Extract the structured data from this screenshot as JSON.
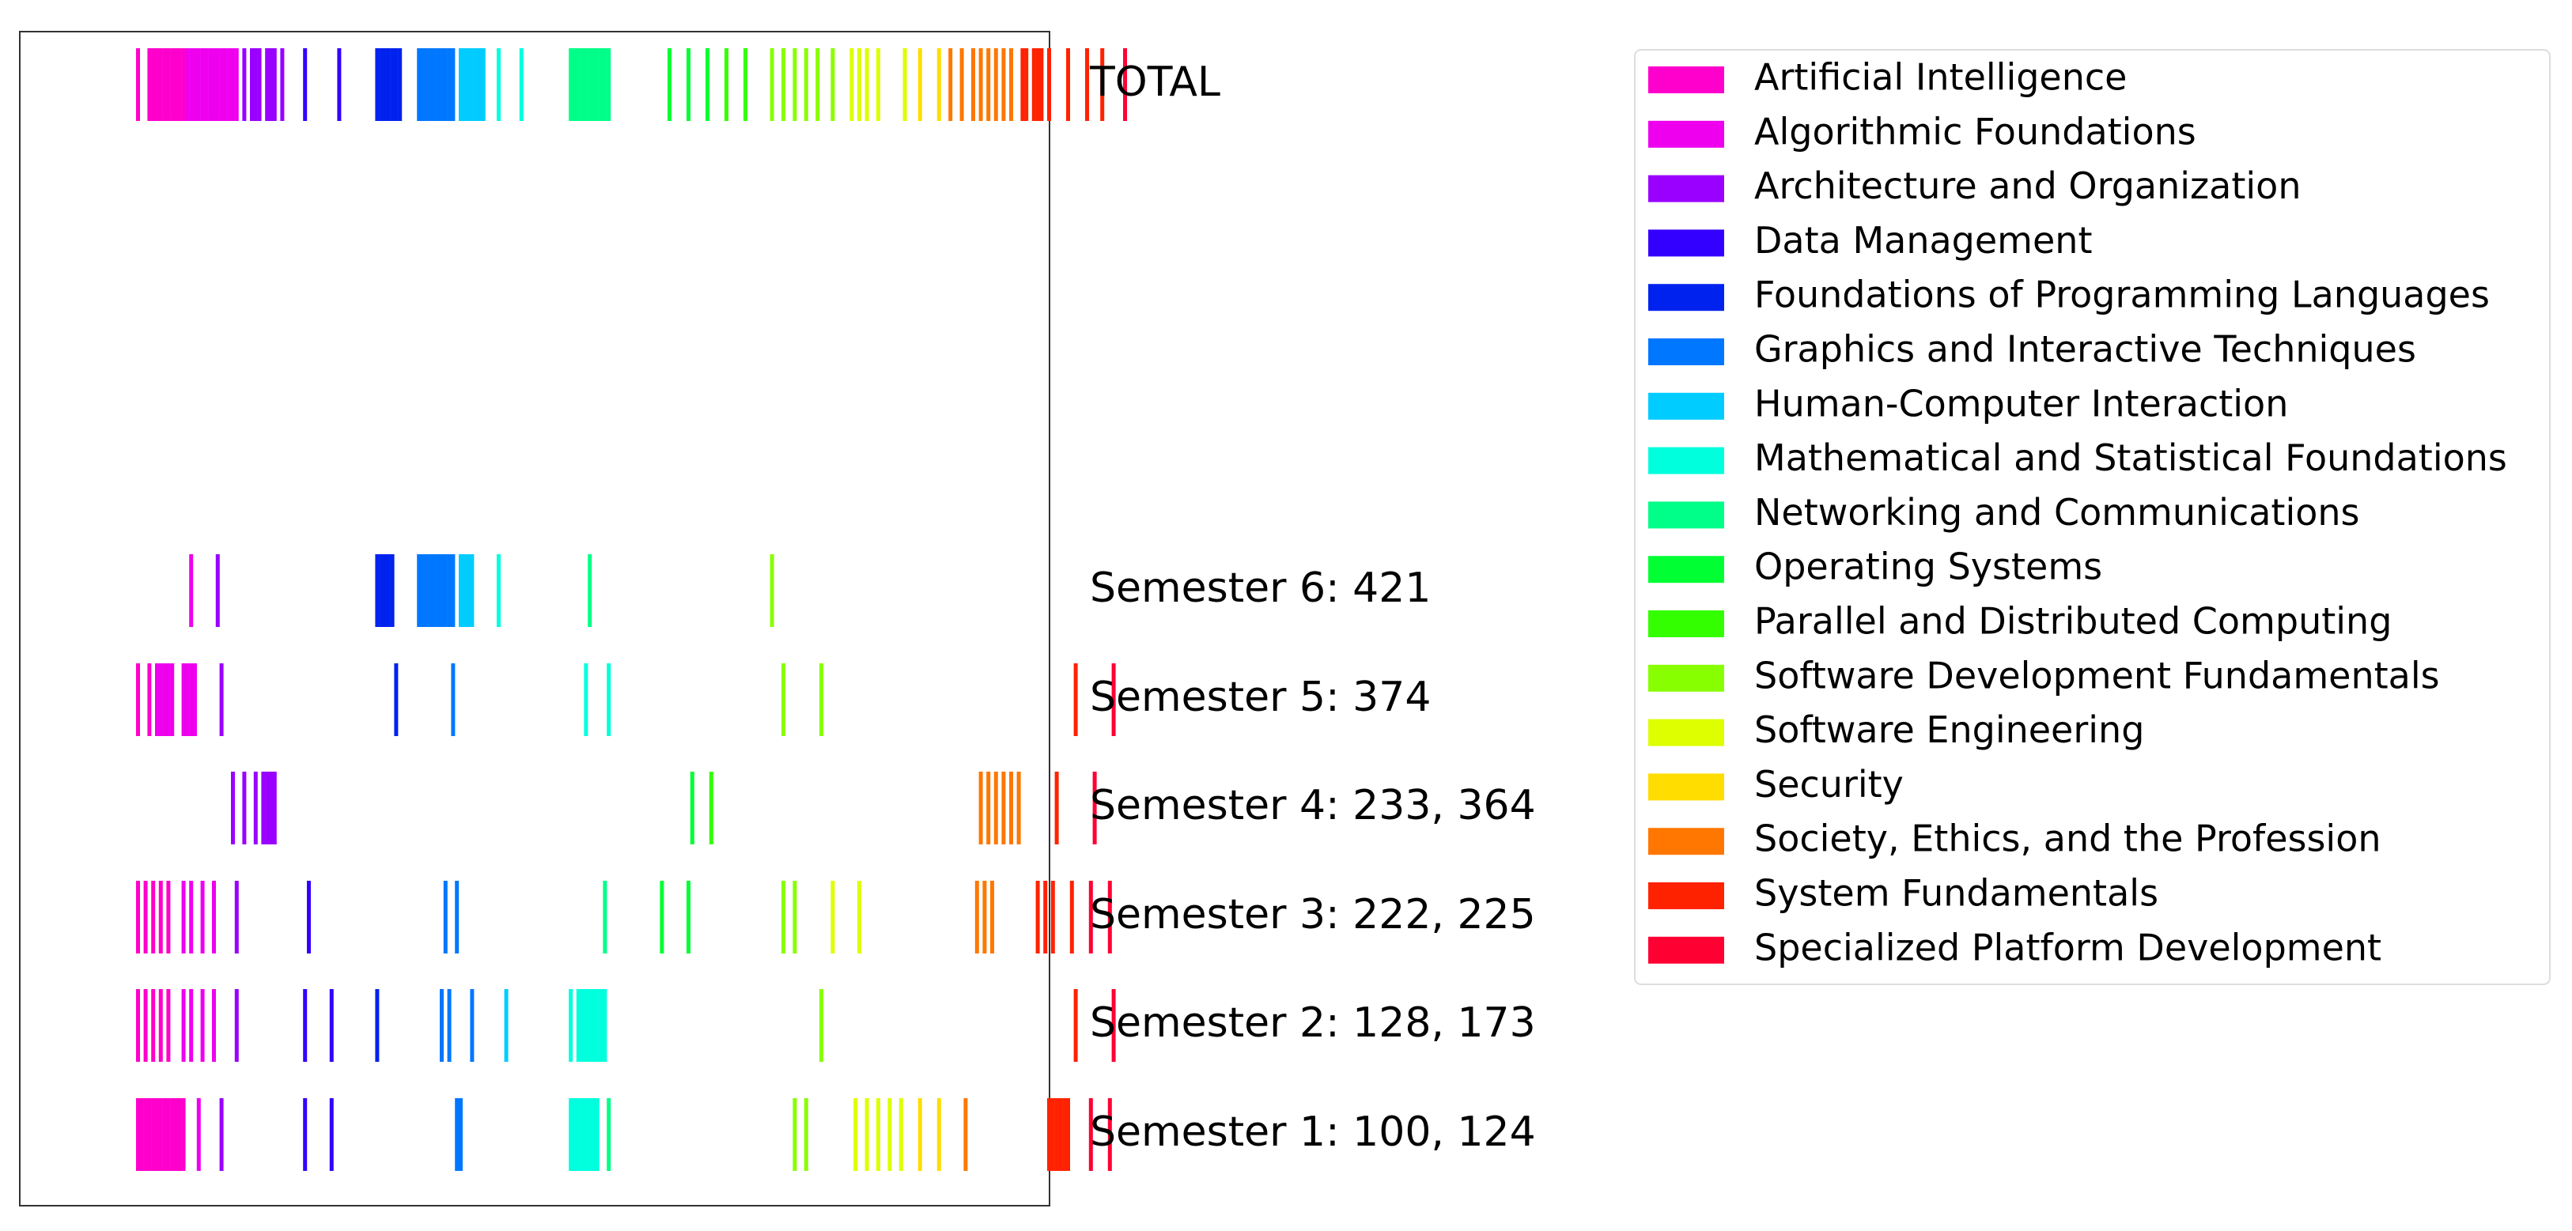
{
  "chart_data": {
    "type": "barcode",
    "row_labels": [
      "TOTAL",
      "Semester 6: 421",
      "Semester 5: 374",
      "Semester 4: 233, 364",
      "Semester 3: 222, 225",
      "Semester 2: 128, 173",
      "Semester 1: 100, 124"
    ],
    "categories": [
      {
        "name": "Artificial Intelligence",
        "color": "#ff00cc"
      },
      {
        "name": "Algorithmic Foundations",
        "color": "#ee00ee"
      },
      {
        "name": "Architecture and Organization",
        "color": "#9900ff"
      },
      {
        "name": "Data Management",
        "color": "#3300ff"
      },
      {
        "name": "Foundations of Programming Languages",
        "color": "#0022ee"
      },
      {
        "name": "Graphics and Interactive Techniques",
        "color": "#0077ff"
      },
      {
        "name": "Human-Computer Interaction",
        "color": "#00ccff"
      },
      {
        "name": "Mathematical and Statistical Foundations",
        "color": "#00ffdd"
      },
      {
        "name": "Networking and Communications",
        "color": "#00ff88"
      },
      {
        "name": "Operating Systems",
        "color": "#00ff33"
      },
      {
        "name": "Parallel and Distributed Computing",
        "color": "#33ff00"
      },
      {
        "name": "Software Development Fundamentals",
        "color": "#88ff00"
      },
      {
        "name": "Software Engineering",
        "color": "#ddff00"
      },
      {
        "name": "Security",
        "color": "#ffdd00"
      },
      {
        "name": "Society, Ethics, and the Profession",
        "color": "#ff7700"
      },
      {
        "name": "System Fundamentals",
        "color": "#ff2200"
      },
      {
        "name": "Specialized Platform Development",
        "color": "#ff0033"
      }
    ],
    "rows": [
      {
        "label": "TOTAL",
        "ticks": [
          [
            0,
            3,
            4,
            5,
            6,
            7,
            8,
            9,
            10,
            11,
            12
          ],
          [
            13,
            14,
            15,
            16,
            17,
            18,
            19,
            20,
            21,
            22,
            23,
            24,
            25,
            26
          ],
          [
            28,
            30,
            31,
            32,
            34,
            35,
            36,
            38
          ],
          [
            44,
            53
          ],
          [
            63,
            64,
            65,
            66,
            67,
            68,
            69
          ],
          [
            74,
            75,
            76,
            77,
            78,
            79,
            80,
            81,
            82,
            83
          ],
          [
            85,
            86,
            87,
            88,
            89,
            90,
            91
          ],
          [
            95,
            101
          ],
          [
            114,
            115,
            116,
            117,
            118,
            119,
            120,
            121,
            122,
            123,
            124
          ],
          [
            140,
            145,
            150
          ],
          [
            155,
            160
          ],
          [
            167,
            170,
            173,
            176,
            179,
            183
          ],
          [
            188,
            190,
            192,
            195,
            202
          ],
          [
            206,
            211
          ],
          [
            214,
            217,
            220,
            222,
            224,
            226,
            228,
            230
          ],
          [
            233,
            234,
            236,
            237,
            238,
            240,
            245,
            250,
            254
          ],
          [
            260
          ]
        ]
      },
      {
        "label": "Semester 6: 421",
        "ticks": [
          [],
          [
            14
          ],
          [
            21
          ],
          [],
          [
            63,
            64,
            65,
            66,
            67
          ],
          [
            74,
            75,
            76,
            77,
            78,
            79,
            80,
            81,
            82,
            83
          ],
          [
            85,
            86,
            87,
            88
          ],
          [
            95
          ],
          [
            119
          ],
          [],
          [],
          [
            167
          ],
          [],
          [],
          [],
          [],
          []
        ]
      },
      {
        "label": "Semester 5: 374",
        "ticks": [
          [
            0,
            3
          ],
          [
            5,
            6,
            7,
            8,
            9,
            12,
            13,
            14,
            15
          ],
          [
            22
          ],
          [],
          [
            68
          ],
          [
            83
          ],
          [],
          [
            118,
            124
          ],
          [],
          [],
          [],
          [
            170,
            180
          ],
          [],
          [],
          [],
          [
            247
          ],
          [
            257
          ]
        ]
      },
      {
        "label": "Semester 4: 233, 364",
        "ticks": [
          [],
          [],
          [
            25,
            28,
            31,
            33,
            34,
            35,
            36
          ],
          [],
          [],
          [],
          [],
          [],
          [],
          [
            146
          ],
          [
            151
          ],
          [],
          [],
          [],
          [
            222,
            224,
            226,
            228,
            230,
            232
          ],
          [
            242
          ],
          [
            252
          ]
        ]
      },
      {
        "label": "Semester 3: 222, 225",
        "ticks": [
          [
            0,
            2,
            4,
            6,
            8
          ],
          [
            12,
            14,
            17,
            20
          ],
          [
            26
          ],
          [
            45
          ],
          [],
          [
            81,
            84
          ],
          [],
          [],
          [
            123
          ],
          [
            138,
            145
          ],
          [],
          [
            170,
            173
          ],
          [
            183,
            190
          ],
          [],
          [
            221,
            223,
            225
          ],
          [
            237,
            239,
            241,
            246
          ],
          [
            251,
            256
          ]
        ]
      },
      {
        "label": "Semester 2: 128, 173",
        "ticks": [
          [
            0,
            2,
            4,
            6,
            8
          ],
          [
            12,
            14,
            17,
            20
          ],
          [
            26
          ],
          [
            44,
            51
          ],
          [
            63
          ],
          [
            80,
            82,
            88
          ],
          [
            97
          ],
          [
            114,
            116,
            117,
            118,
            119,
            120,
            121,
            122,
            123
          ],
          [],
          [],
          [],
          [
            180
          ],
          [],
          [],
          [],
          [
            247
          ],
          [
            257
          ]
        ]
      },
      {
        "label": "Semester 1: 100, 124",
        "ticks": [
          [
            0,
            1,
            2,
            3,
            4,
            5,
            6,
            7,
            8,
            9,
            10,
            11,
            12
          ],
          [
            16
          ],
          [
            22
          ],
          [
            44,
            51
          ],
          [],
          [
            84,
            85
          ],
          [],
          [
            114,
            115,
            116,
            117,
            118,
            119,
            120,
            121
          ],
          [
            124
          ],
          [],
          [],
          [
            173,
            176
          ],
          [
            189,
            192,
            195,
            198,
            201
          ],
          [
            206,
            211
          ],
          [
            218
          ],
          [
            240,
            241,
            242,
            243,
            244,
            245
          ],
          [
            251,
            256
          ]
        ]
      }
    ],
    "x_range": [
      0,
      260
    ],
    "legend_position": "right",
    "grid": false
  }
}
